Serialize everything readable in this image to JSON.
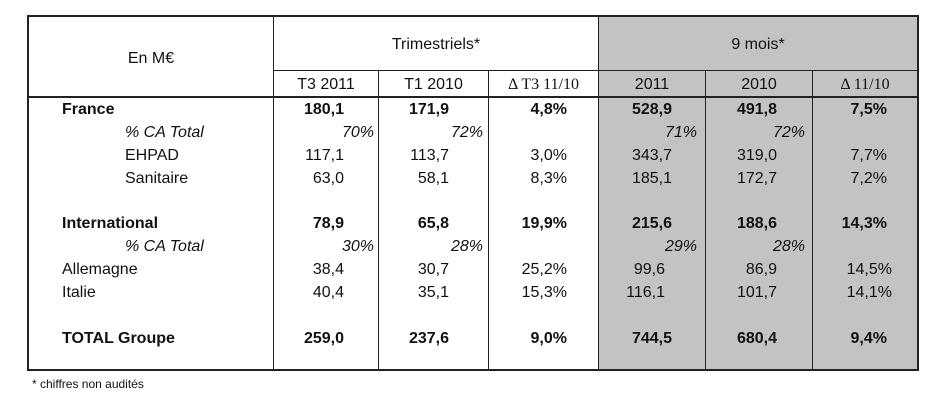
{
  "header": {
    "unit_label": "En M€",
    "group_quarterly": "Trimestriels*",
    "group_nine_months": "9 mois*",
    "columns": [
      "T3 2011",
      "T1 2010",
      "Δ T3 11/10",
      "2011",
      "2010",
      "Δ 11/10"
    ]
  },
  "rows": [
    {
      "label": "France",
      "values": [
        "180,1",
        "171,9",
        "4,8%",
        "528,9",
        "491,8",
        "7,5%"
      ]
    },
    {
      "label": "% CA Total",
      "values": [
        "70%",
        "72%",
        "",
        "71%",
        "72%",
        ""
      ]
    },
    {
      "label": "EHPAD",
      "values": [
        "117,1",
        "113,7",
        "3,0%",
        "343,7",
        "319,0",
        "7,7%"
      ]
    },
    {
      "label": "Sanitaire",
      "values": [
        "63,0",
        "58,1",
        "8,3%",
        "185,1",
        "172,7",
        "7,2%"
      ]
    },
    {
      "label": "International",
      "values": [
        "78,9",
        "65,8",
        "19,9%",
        "215,6",
        "188,6",
        "14,3%"
      ]
    },
    {
      "label": "% CA Total",
      "values": [
        "30%",
        "28%",
        "",
        "29%",
        "28%",
        ""
      ]
    },
    {
      "label": "Allemagne",
      "values": [
        "38,4",
        "30,7",
        "25,2%",
        "99,6",
        "86,9",
        "14,5%"
      ]
    },
    {
      "label": "Italie",
      "values": [
        "40,4",
        "35,1",
        "15,3%",
        "116,1",
        "101,7",
        "14,1%"
      ]
    },
    {
      "label": "TOTAL Groupe",
      "values": [
        "259,0",
        "237,6",
        "9,0%",
        "744,5",
        "680,4",
        "9,4%"
      ]
    }
  ],
  "footnote": "* chiffres non audités",
  "colors": {
    "shaded_columns": "#c3c3c3",
    "border": "#222222"
  }
}
